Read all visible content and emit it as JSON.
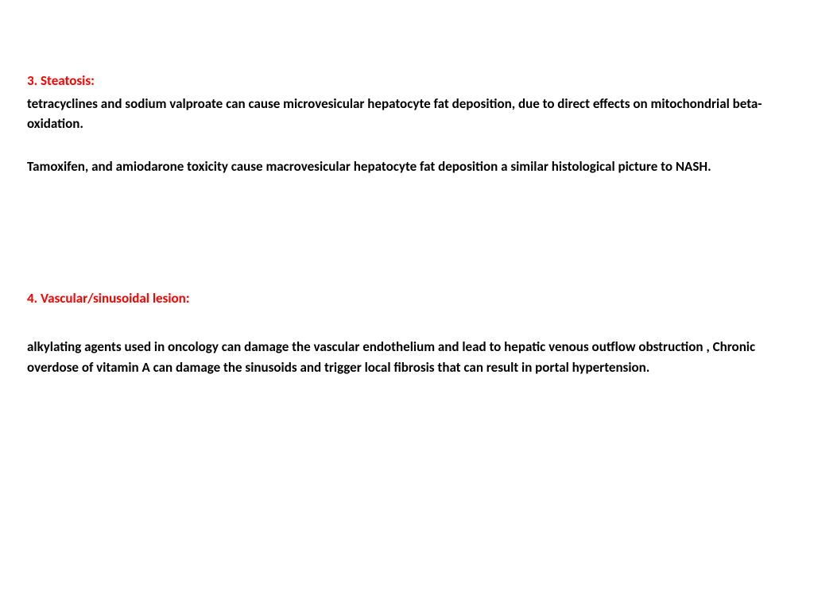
{
  "sections": {
    "steatosis": {
      "heading": "3. Steatosis:",
      "paragraph1": "tetracyclines  and sodium valproate can cause microvesicular hepatocyte fat deposition, due to direct effects on mitochondrial beta-oxidation.",
      "paragraph2": "Tamoxifen, and amiodarone toxicity cause macrovesicular hepatocyte fat deposition a similar histological picture to NASH."
    },
    "vascular": {
      "heading": "4. Vascular/sinusoidal lesion:",
      "paragraph1": "alkylating agents used in oncology can  damage the vascular endothelium and lead to hepatic venous outflow obstruction , Chronic overdose of vitamin A can damage  the sinusoids and trigger local fibrosis that can result in portal  hypertension."
    }
  },
  "styling": {
    "heading_color": "#ff0000",
    "body_color": "#000000",
    "background_color": "#ffffff",
    "font_family": "Calibri, Arial, sans-serif",
    "font_size_pt": 17,
    "font_weight": "bold"
  }
}
